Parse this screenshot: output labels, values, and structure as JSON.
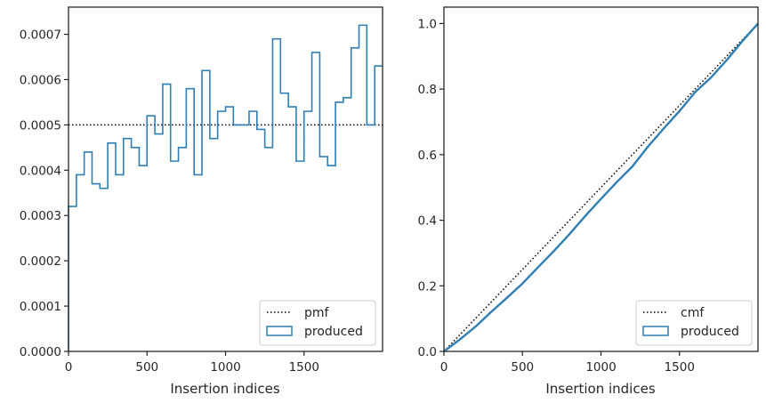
{
  "chart_data": [
    {
      "type": "histogram-step",
      "xlabel": "Insertion indices",
      "ylabel": "",
      "xlim": [
        0,
        2000
      ],
      "ylim": [
        0,
        0.00076
      ],
      "xticks": [
        0,
        500,
        1000,
        1500
      ],
      "xtick_labels": [
        "0",
        "500",
        "1000",
        "1500"
      ],
      "yticks": [
        0,
        0.0001,
        0.0002,
        0.0003,
        0.0004,
        0.0005,
        0.0006,
        0.0007
      ],
      "ytick_labels": [
        "0.0000",
        "0.0001",
        "0.0002",
        "0.0003",
        "0.0004",
        "0.0005",
        "0.0006",
        "0.0007"
      ],
      "legend_position": "lower-right",
      "reference": {
        "name": "pmf",
        "value": 0.0005,
        "style": "dotted",
        "color": "#000000"
      },
      "series": [
        {
          "name": "produced",
          "color": "#2f7fb5",
          "bin_width": 50,
          "values": [
            0.00032,
            0.00039,
            0.00044,
            0.00037,
            0.00036,
            0.00046,
            0.00039,
            0.00047,
            0.00045,
            0.00041,
            0.00052,
            0.00048,
            0.00059,
            0.00042,
            0.00045,
            0.00058,
            0.00039,
            0.00062,
            0.00047,
            0.00053,
            0.00054,
            0.0005,
            0.0005,
            0.00053,
            0.00049,
            0.00045,
            0.00069,
            0.00057,
            0.00054,
            0.00042,
            0.00053,
            0.00066,
            0.00043,
            0.00041,
            0.00055,
            0.00056,
            0.00067,
            0.00072,
            0.0005,
            0.00063
          ]
        }
      ]
    },
    {
      "type": "line",
      "xlabel": "Insertion indices",
      "ylabel": "",
      "xlim": [
        0,
        2000
      ],
      "ylim": [
        0,
        1.05
      ],
      "xticks": [
        0,
        500,
        1000,
        1500
      ],
      "xtick_labels": [
        "0",
        "500",
        "1000",
        "1500"
      ],
      "yticks": [
        0,
        0.2,
        0.4,
        0.6,
        0.8,
        1.0
      ],
      "ytick_labels": [
        "0.0",
        "0.2",
        "0.4",
        "0.6",
        "0.8",
        "1.0"
      ],
      "legend_position": "lower-right",
      "reference": {
        "name": "cmf",
        "style": "dotted",
        "color": "#000000",
        "x": [
          0,
          2000
        ],
        "y": [
          0,
          1.0
        ]
      },
      "series": [
        {
          "name": "produced",
          "color": "#2f7fb5",
          "x": [
            0,
            100,
            200,
            300,
            400,
            500,
            600,
            700,
            800,
            900,
            1000,
            1100,
            1200,
            1300,
            1400,
            1500,
            1600,
            1700,
            1800,
            1900,
            2000
          ],
          "y": [
            0,
            0.036,
            0.075,
            0.12,
            0.163,
            0.207,
            0.257,
            0.306,
            0.358,
            0.413,
            0.465,
            0.516,
            0.564,
            0.625,
            0.68,
            0.733,
            0.791,
            0.835,
            0.888,
            0.946,
            1.0
          ]
        }
      ]
    }
  ]
}
